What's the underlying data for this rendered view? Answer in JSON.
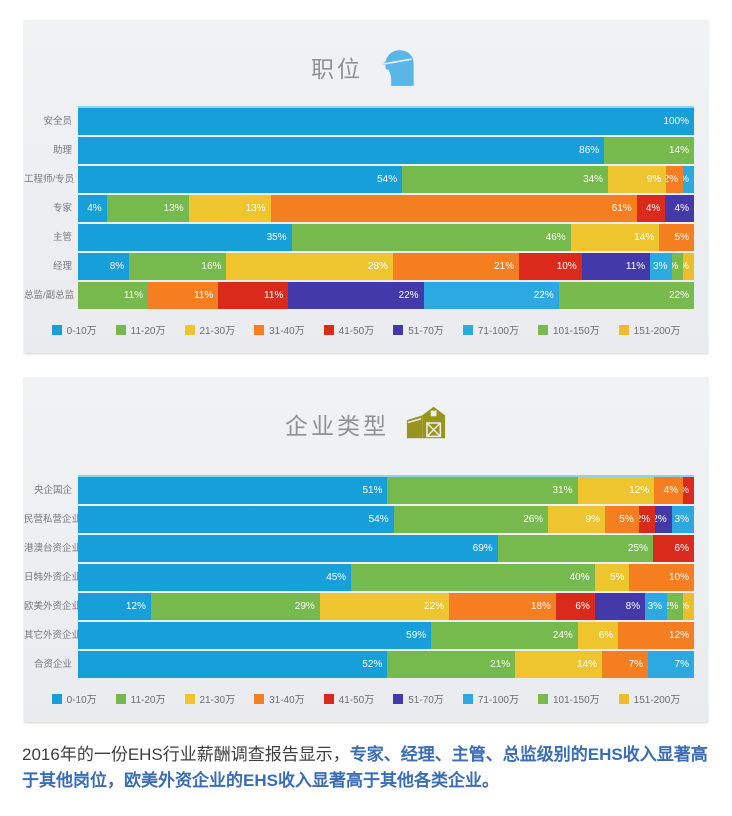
{
  "legend": {
    "labels": [
      "0-10万",
      "11-20万",
      "21-30万",
      "31-40万",
      "41-50万",
      "51-70万",
      "71-100万",
      "101-150万",
      "151-200万"
    ],
    "colors": [
      "#169fd9",
      "#76b94d",
      "#eec52f",
      "#f57e20",
      "#da2a1b",
      "#4439a8",
      "#2ba9e0",
      "#79ba4e",
      "#eebd2b"
    ]
  },
  "chart_data": [
    {
      "type": "bar",
      "orientation": "horizontal",
      "stacked": true,
      "stacked_total": 100,
      "title": "职位",
      "icon": "hardhat-worker-icon",
      "icon_color": "#5ab6e6",
      "unit": "%",
      "value_suffix": "%",
      "categories": [
        "安全员",
        "助理",
        "工程师/专员",
        "专家",
        "主管",
        "经理",
        "总监/副总监"
      ],
      "series": [
        {
          "name": "0-10万",
          "values": [
            100,
            86,
            54,
            4,
            35,
            8,
            0
          ]
        },
        {
          "name": "11-20万",
          "values": [
            0,
            14,
            34,
            13,
            46,
            16,
            11
          ]
        },
        {
          "name": "21-30万",
          "values": [
            0,
            0,
            9,
            13,
            14,
            28,
            0
          ]
        },
        {
          "name": "31-40万",
          "values": [
            0,
            0,
            2,
            61,
            5,
            21,
            11
          ]
        },
        {
          "name": "41-50万",
          "values": [
            0,
            0,
            0,
            4,
            0,
            10,
            11
          ]
        },
        {
          "name": "51-70万",
          "values": [
            0,
            0,
            0,
            4,
            0,
            11,
            22
          ]
        },
        {
          "name": "71-100万",
          "values": [
            0,
            0,
            1,
            0,
            0,
            3,
            22
          ]
        },
        {
          "name": "101-150万",
          "values": [
            0,
            0,
            0,
            0,
            0,
            1,
            22
          ]
        },
        {
          "name": "151-200万",
          "values": [
            0,
            0,
            0,
            0,
            0,
            1,
            0
          ]
        }
      ]
    },
    {
      "type": "bar",
      "orientation": "horizontal",
      "stacked": true,
      "stacked_total": 100,
      "title": "企业类型",
      "icon": "barn-icon",
      "icon_color": "#97951d",
      "unit": "%",
      "value_suffix": "%",
      "categories": [
        "央企国企",
        "民营私营企业",
        "港澳台资企业",
        "日韩外资企业",
        "欧美外资企业",
        "其它外资企业",
        "合资企业"
      ],
      "series": [
        {
          "name": "0-10万",
          "values": [
            51,
            54,
            69,
            45,
            12,
            59,
            52
          ]
        },
        {
          "name": "11-20万",
          "values": [
            31,
            26,
            25,
            40,
            29,
            24,
            21
          ]
        },
        {
          "name": "21-30万",
          "values": [
            12,
            9,
            0,
            5,
            22,
            6,
            14
          ]
        },
        {
          "name": "31-40万",
          "values": [
            4,
            5,
            0,
            10,
            18,
            12,
            7
          ]
        },
        {
          "name": "41-50万",
          "values": [
            1,
            2,
            6,
            0,
            6,
            0,
            0
          ]
        },
        {
          "name": "51-70万",
          "values": [
            0,
            2,
            0,
            0,
            8,
            0,
            0
          ]
        },
        {
          "name": "71-100万",
          "values": [
            0,
            3,
            0,
            0,
            3,
            0,
            7
          ]
        },
        {
          "name": "101-150万",
          "values": [
            0,
            0,
            0,
            0,
            2,
            0,
            0
          ]
        },
        {
          "name": "151-200万",
          "values": [
            0,
            0,
            0,
            0,
            1,
            0,
            0
          ]
        }
      ]
    }
  ],
  "footer": {
    "text_plain": "2016年的一份EHS行业薪酬调查报告显示，",
    "text_highlight": "专家、经理、主管、总监级别的EHS收入显著高于其他岗位，欧美外资企业的EHS收入显著高于其他各类企业。",
    "highlight_color": "#3a6db3"
  }
}
